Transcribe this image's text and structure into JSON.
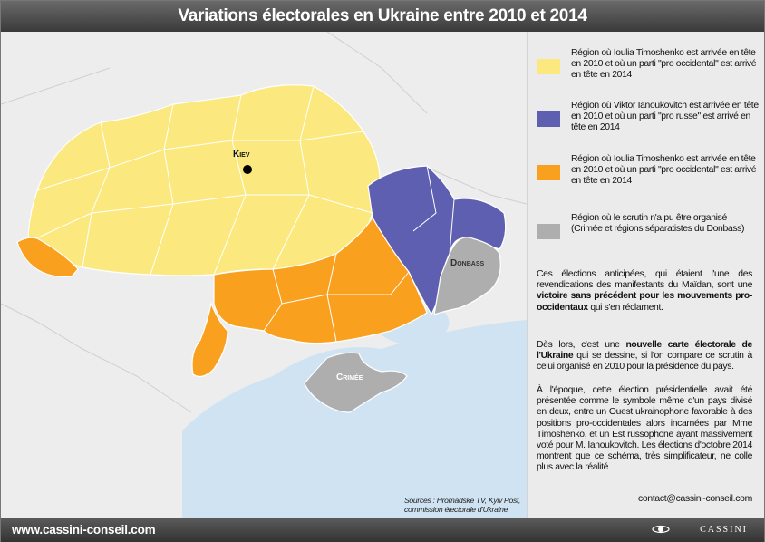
{
  "title": "Variations électorales en Ukraine entre 2010 et 2014",
  "legend": [
    {
      "color": "#fbe97f",
      "text": "Région où Ioulia Timoshenko est arrivée en tête en 2010 et où un parti \"pro occidental\" est arrivé en tête en 2014"
    },
    {
      "color": "#5f5fb1",
      "text": "Région où Viktor Ianoukovitch est arrivée en tête en 2010 et où un parti \"pro russe\" est arrivé en tête en 2014"
    },
    {
      "color": "#f9a01f",
      "text": "Région où Ioulia Timoshenko est arrivée en tête en 2010 et où un parti \"pro occidental\" est arrivé en tête en 2014"
    },
    {
      "color": "#aeaeae",
      "text": "Région où le scrutin n'a pu être organisé (Crimée et régions séparatistes du Donbass)"
    }
  ],
  "paragraphs": {
    "p1_a": "Ces élections anticipées, qui étaient l'une des revendications des manifestants du Maïdan, sont une ",
    "p1_b": "victoire sans précédent pour les mouvements pro-occidentaux",
    "p1_c": " qui s'en réclament.",
    "p2_a": "Dès lors, c'est une ",
    "p2_b": "nouvelle carte électorale de l'Ukraine",
    "p2_c": " qui se dessine, si l'on compare ce scrutin à celui organisé en 2010 pour la présidence du pays.",
    "p3": "À l'époque, cette élection présidentielle avait été présentée comme le symbole même d'un pays divisé en deux, entre un Ouest ukrainophone favorable à des positions pro-occidentales alors incarnées par Mme Timoshenko, et un Est russophone ayant massivement voté pour M. Ianoukovitch. Les élections d'octobre 2014 montrent que ce schéma, très simplificateur, ne colle plus avec la réalité"
  },
  "contact": "contact@cassini-conseil.com",
  "map": {
    "labels": {
      "kiev": "Kiev",
      "donbass": "Donbass",
      "crimee": "Crimée"
    },
    "sources_line1": "Sources : Hromadske TV, Kyiv Post,",
    "sources_line2": "commission électorale d'Ukraine"
  },
  "footer": {
    "website": "www.cassini-conseil.com",
    "brand": "CASSINI"
  }
}
